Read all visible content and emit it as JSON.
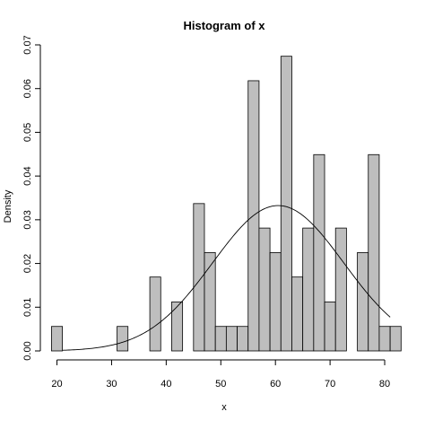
{
  "chart_data": {
    "type": "bar",
    "title": "Histogram of x",
    "xlabel": "x",
    "ylabel": "Density",
    "xlim": [
      18.6,
      81.8
    ],
    "ylim": [
      0,
      0.07
    ],
    "grid": false,
    "legend": "none",
    "bar_fill": "#bebebe",
    "bar_stroke": "#000000",
    "curve_color": "#000000",
    "bin_width": 2,
    "x_ticks": [
      20,
      30,
      40,
      50,
      60,
      70,
      80
    ],
    "x_tick_labels": [
      "20",
      "30",
      "40",
      "50",
      "60",
      "70",
      "80"
    ],
    "y_ticks": [
      0.0,
      0.01,
      0.02,
      0.03,
      0.04,
      0.05,
      0.06,
      0.07
    ],
    "y_tick_labels": [
      "0.00",
      "0.01",
      "0.02",
      "0.03",
      "0.04",
      "0.05",
      "0.06",
      "0.07"
    ],
    "bins": [
      {
        "x0": 19,
        "x1": 21,
        "density": 0.0056
      },
      {
        "x0": 21,
        "x1": 23,
        "density": 0.0
      },
      {
        "x0": 23,
        "x1": 25,
        "density": 0.0
      },
      {
        "x0": 25,
        "x1": 27,
        "density": 0.0
      },
      {
        "x0": 27,
        "x1": 29,
        "density": 0.0
      },
      {
        "x0": 29,
        "x1": 31,
        "density": 0.0
      },
      {
        "x0": 31,
        "x1": 33,
        "density": 0.0056
      },
      {
        "x0": 33,
        "x1": 35,
        "density": 0.0
      },
      {
        "x0": 35,
        "x1": 37,
        "density": 0.0
      },
      {
        "x0": 37,
        "x1": 39,
        "density": 0.0169
      },
      {
        "x0": 39,
        "x1": 41,
        "density": 0.0
      },
      {
        "x0": 41,
        "x1": 43,
        "density": 0.0112
      },
      {
        "x0": 43,
        "x1": 45,
        "density": 0.0
      },
      {
        "x0": 45,
        "x1": 47,
        "density": 0.0337
      },
      {
        "x0": 47,
        "x1": 49,
        "density": 0.0225
      },
      {
        "x0": 49,
        "x1": 51,
        "density": 0.0056
      },
      {
        "x0": 51,
        "x1": 53,
        "density": 0.0056
      },
      {
        "x0": 53,
        "x1": 55,
        "density": 0.0056
      },
      {
        "x0": 55,
        "x1": 57,
        "density": 0.0618
      },
      {
        "x0": 57,
        "x1": 59,
        "density": 0.0281
      },
      {
        "x0": 59,
        "x1": 61,
        "density": 0.0225
      },
      {
        "x0": 61,
        "x1": 63,
        "density": 0.0674
      },
      {
        "x0": 63,
        "x1": 65,
        "density": 0.0169
      },
      {
        "x0": 65,
        "x1": 67,
        "density": 0.0281
      },
      {
        "x0": 67,
        "x1": 69,
        "density": 0.0449
      },
      {
        "x0": 69,
        "x1": 71,
        "density": 0.0112
      },
      {
        "x0": 71,
        "x1": 73,
        "density": 0.0281
      },
      {
        "x0": 73,
        "x1": 75,
        "density": 0.0
      },
      {
        "x0": 75,
        "x1": 77,
        "density": 0.0225
      },
      {
        "x0": 77,
        "x1": 79,
        "density": 0.0449
      },
      {
        "x0": 79,
        "x1": 81,
        "density": 0.0056
      },
      {
        "x0": 81,
        "x1": 83,
        "density": 0.0056
      }
    ],
    "curve": {
      "kind": "normal-density",
      "mean": 60.5,
      "sd": 12.0,
      "x_range": [
        21,
        81
      ]
    }
  }
}
